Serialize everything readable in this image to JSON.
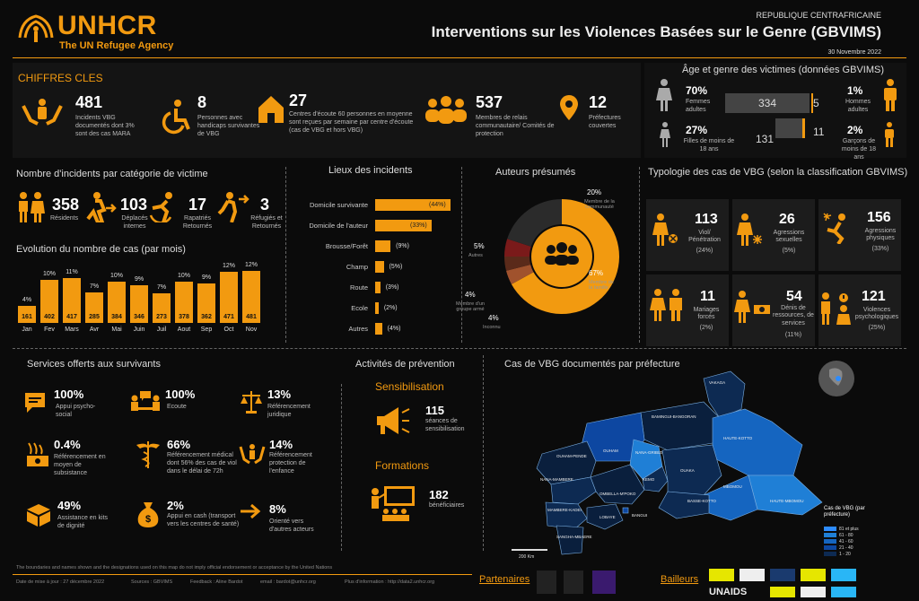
{
  "header": {
    "logo_name": "UNHCR",
    "logo_sub": "The UN Refugee Agency",
    "country": "REPUBLIQUE CENTRAFRICAINE",
    "title": "Interventions sur les Violences Basées sur le Genre (GBVIMS)",
    "date": "30 Novembre 2022"
  },
  "key_figures": {
    "title": "CHIFFRES CLES",
    "items": [
      {
        "value": "481",
        "label": "Incidents VBG documentés dont 3% sont des cas MARA",
        "icon": "hands-person-icon"
      },
      {
        "value": "8",
        "label": "Personnes avec handicaps survivantes de VBG",
        "icon": "wheelchair-icon"
      },
      {
        "value": "27",
        "label": "Centres d'écoute 60 personnes en moyenne sont reçues par semaine par centre d'écoute (cas de VBG et hors VBG)",
        "icon": "house-icon"
      },
      {
        "value": "537",
        "label": "Membres de relais communautaire/ Comités de protection",
        "icon": "group-icon"
      },
      {
        "value": "12",
        "label": "Préfectures couvertes",
        "icon": "map-pin-icon"
      }
    ]
  },
  "age_gender": {
    "title": "Âge et genre des victimes (données GBVIMS)",
    "women_pct": "70%",
    "women_label": "Femmes adultes",
    "women_val": "334",
    "men_pct": "1%",
    "men_label": "Hommes adultes",
    "men_val": "5",
    "girls_pct": "27%",
    "girls_label": "Filles de moins de 18 ans",
    "girls_val": "131",
    "boys_pct": "2%",
    "boys_label": "Garçons de moins de 18 ans",
    "boys_val": "11"
  },
  "victim_category": {
    "title": "Nombre d'incidents par catégorie de victime",
    "items": [
      {
        "value": "358",
        "label": "Résidents"
      },
      {
        "value": "103",
        "label": "Déplacés internes"
      },
      {
        "value": "17",
        "label": "Rapatriés Retournés"
      },
      {
        "value": "3",
        "label": "Réfugiés et Retournés"
      }
    ]
  },
  "evolution": {
    "title": "Evolution du nombre de cas (par mois)",
    "months": [
      "Jan",
      "Fev",
      "Mars",
      "Avr",
      "Mai",
      "Juin",
      "Juil",
      "Aout",
      "Sep",
      "Oct",
      "Nov"
    ],
    "values": [
      161,
      402,
      417,
      285,
      384,
      346,
      273,
      378,
      362,
      471,
      481
    ],
    "pcts": [
      "4%",
      "10%",
      "11%",
      "7%",
      "10%",
      "9%",
      "7%",
      "10%",
      "9%",
      "12%",
      "12%"
    ]
  },
  "locations": {
    "title": "Lieux des incidents",
    "items": [
      {
        "label": "Domicile survivante",
        "pct": "(44%)",
        "value": 44
      },
      {
        "label": "Domicile de l'auteur",
        "pct": "(33%)",
        "value": 33
      },
      {
        "label": "Brousse/Forêt",
        "pct": "(9%)",
        "value": 9
      },
      {
        "label": "Champ",
        "pct": "(5%)",
        "value": 5
      },
      {
        "label": "Route",
        "pct": "(3%)",
        "value": 3
      },
      {
        "label": "Ecole",
        "pct": "(2%)",
        "value": 2
      },
      {
        "label": "Autres",
        "pct": "(4%)",
        "value": 4
      }
    ]
  },
  "perpetrators": {
    "title": "Auteurs présumés",
    "slices": [
      {
        "name": "Membre de la communauté",
        "pct": "20%",
        "value": 20,
        "color": "#2b2b2b"
      },
      {
        "name": "Membre de la famille",
        "pct": "67%",
        "value": 67,
        "color": "#f29a10"
      },
      {
        "name": "Inconnu",
        "pct": "4%",
        "value": 4,
        "color": "#a0522d"
      },
      {
        "name": "Membre d'un groupe armé",
        "pct": "4%",
        "value": 4,
        "color": "#5a2a1a"
      },
      {
        "name": "Autres",
        "pct": "5%",
        "value": 5,
        "color": "#7a1a1a"
      }
    ]
  },
  "typology": {
    "title": "Typologie des cas de VBG (selon la classification GBVIMS)",
    "items": [
      {
        "value": "113",
        "label": "Viol/ Pénétration",
        "pct": "(24%)"
      },
      {
        "value": "26",
        "label": "Agressions sexuelles",
        "pct": "(5%)"
      },
      {
        "value": "156",
        "label": "Agressions physiques",
        "pct": "(33%)"
      },
      {
        "value": "11",
        "label": "Mariages forcés",
        "pct": "(2%)"
      },
      {
        "value": "54",
        "label": "Dénis de ressources, de services",
        "pct": "(11%)"
      },
      {
        "value": "121",
        "label": "Violences psychologiques",
        "pct": "(25%)"
      }
    ]
  },
  "services": {
    "title": "Services offerts aux survivants",
    "items": [
      {
        "pct": "100%",
        "label": "Appui psycho-social"
      },
      {
        "pct": "100%",
        "label": "Ecoute"
      },
      {
        "pct": "13%",
        "label": "Référencement juridique"
      },
      {
        "pct": "0.4%",
        "label": "Référencement en moyen de subsistance"
      },
      {
        "pct": "66%",
        "label": "Référencement médical dont 56% des cas de viol dans le délai de 72h"
      },
      {
        "pct": "14%",
        "label": "Référencement protection de l'enfance"
      },
      {
        "pct": "49%",
        "label": "Assistance en kits de dignité"
      },
      {
        "pct": "2%",
        "label": "Appui en cash (transport vers les centres de santé)"
      },
      {
        "pct": "8%",
        "label": "Orienté vers d'autres acteurs"
      }
    ]
  },
  "prevention": {
    "title": "Activités de prévention",
    "sens_title": "Sensibilisation",
    "sens_value": "115",
    "sens_label": "séances de sensibilisation",
    "form_title": "Formations",
    "form_value": "182",
    "form_label": "bénéficiaires"
  },
  "map": {
    "title": "Cas de VBG documentés par préfecture",
    "legend_title": "Cas de VBG (par préfecture)",
    "legend": [
      "81 et plus",
      "61 - 80",
      "41 - 60",
      "21 - 40",
      "1 - 20"
    ],
    "scale": "200 Km",
    "regions": [
      "VAKAGA",
      "BAMINGUI-BANGORAN",
      "HAUTE-KOTTO",
      "OUHAM",
      "OUHAM-PENDE",
      "NANA-GRIBIZI",
      "KEMO",
      "OUAKA",
      "HAUTE-MBOMOU",
      "MBOMOU",
      "OMBELLA-M'POKO",
      "NANA-MAMBERE",
      "MAMBERE-KADEI",
      "LOBAYE",
      "BASSE-KOTTO",
      "SANGHA-MBAERE",
      "BANGUI"
    ]
  },
  "footer": {
    "disclaimer": "The boundaries and names shown and the designations used on this map do not imply official endorsement or acceptance by the United Nations",
    "update": "Date de mise à jour : 27 décembre 2022",
    "sources": "Sources : GBVIMS",
    "feedback": "Feedback : Aline Bardot",
    "email": "email : bardot@unhcr.org",
    "info": "Plus d'information : http://data2.unhcr.org",
    "partners": "Partenaires",
    "donors": "Bailleurs",
    "unaids": "UNAIDS"
  },
  "colors": {
    "accent": "#f29a10",
    "bg": "#0b0b0b",
    "map_dark": "#0d2a52",
    "map_light": "#1f7fd6"
  }
}
